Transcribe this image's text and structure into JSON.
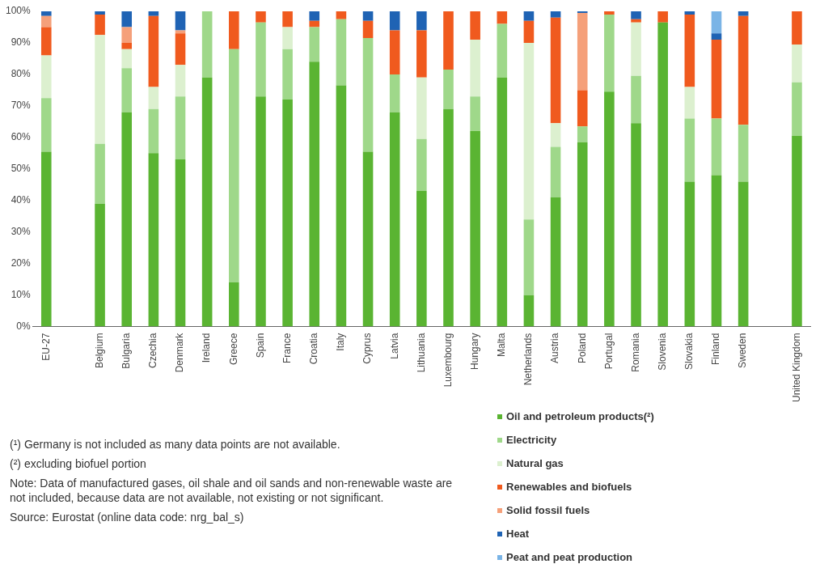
{
  "chart_data": {
    "type": "bar",
    "stacked": true,
    "categories": [
      "EU-27",
      null,
      "Belgium",
      "Bulgaria",
      "Czechia",
      "Denmark",
      "Ireland",
      "Greece",
      "Spain",
      "France",
      "Croatia",
      "Italy",
      "Cyprus",
      "Latvia",
      "Lithuania",
      "Luxembourg",
      "Hungary",
      "Malta",
      "Netherlands",
      "Austria",
      "Poland",
      "Portugal",
      "Romania",
      "Slovenia",
      "Slovakia",
      "Finland",
      "Sweden",
      null,
      "United Kingdom"
    ],
    "series": [
      {
        "name": "Oil and petroleum products(²)",
        "color": "#5ab432",
        "values": [
          55.5,
          null,
          39,
          68,
          55,
          53,
          79,
          14,
          73,
          72,
          84,
          76.5,
          55.5,
          68,
          43,
          69,
          62,
          79,
          10,
          41,
          58.5,
          74.5,
          64.5,
          96.5,
          46,
          48,
          46,
          null,
          60.5
        ]
      },
      {
        "name": "Electricity",
        "color": "#9fd88a",
        "values": [
          17,
          null,
          19,
          14,
          14,
          20,
          21,
          74,
          23.5,
          16,
          11,
          21,
          36,
          12,
          16.5,
          12.5,
          11,
          17,
          24,
          16,
          5,
          24.5,
          15,
          0,
          20,
          18,
          18,
          null,
          17
        ]
      },
      {
        "name": "Natural gas",
        "color": "#dcf0cf",
        "values": [
          13.5,
          null,
          34.5,
          6,
          7,
          10,
          0,
          0,
          0,
          7,
          0,
          0,
          0,
          0,
          19.5,
          0,
          18,
          0,
          56,
          7.5,
          0,
          0,
          17,
          0,
          10,
          0,
          0,
          null,
          12
        ]
      },
      {
        "name": "Renewables and biofuels",
        "color": "#f05a1e",
        "values": [
          9,
          null,
          6.5,
          2,
          22.5,
          10,
          0,
          12,
          3.5,
          5,
          2,
          2.5,
          5.5,
          14,
          15,
          18.5,
          9,
          4,
          7,
          33.5,
          11.5,
          1,
          1,
          3.5,
          23,
          25,
          34.5,
          null,
          10.5
        ]
      },
      {
        "name": "Solid fossil fuels",
        "color": "#f5a07a",
        "values": [
          3.5,
          null,
          0,
          5,
          0,
          1,
          0,
          0,
          0,
          0,
          0,
          0,
          0,
          0,
          0,
          0,
          0,
          0,
          0,
          0,
          24.5,
          0,
          0,
          0,
          0,
          0,
          0,
          null,
          0
        ]
      },
      {
        "name": "Heat",
        "color": "#1f63b4",
        "values": [
          1.5,
          null,
          1,
          5,
          1.5,
          6,
          0,
          0,
          0,
          0,
          3,
          0,
          3,
          6,
          6,
          0,
          0,
          0,
          3,
          2,
          0.5,
          0,
          2.5,
          0,
          1,
          2,
          1.5,
          null,
          0
        ]
      },
      {
        "name": "Peat and peat production",
        "color": "#7ab4e6",
        "values": [
          0,
          null,
          0,
          0,
          0,
          0,
          0,
          0,
          0,
          0,
          0,
          0,
          0,
          0,
          0,
          0,
          0,
          0,
          0,
          0,
          0,
          0,
          0,
          0,
          0,
          7,
          0,
          null,
          0
        ]
      }
    ],
    "ylim": [
      0,
      100
    ],
    "yticks": [
      {
        "value": 0,
        "label": "0%"
      },
      {
        "value": 10,
        "label": "10%"
      },
      {
        "value": 20,
        "label": "20%"
      },
      {
        "value": 30,
        "label": "30%"
      },
      {
        "value": 40,
        "label": "40%"
      },
      {
        "value": 50,
        "label": "50%"
      },
      {
        "value": 60,
        "label": "60%"
      },
      {
        "value": 70,
        "label": "70%"
      },
      {
        "value": 80,
        "label": "80%"
      },
      {
        "value": 90,
        "label": "90%"
      },
      {
        "value": 100,
        "label": "100%"
      }
    ],
    "grid": false,
    "legend": "bottom right",
    "annotations": [
      "(¹) Germany is not included as many data points are not available.",
      "(²) excluding biofuel portion",
      "Note: Data of manufactured gases, oil shale and oil sands and non-renewable waste are not included, because data are not available, not existing or not significant.",
      "Source: Eurostat (online data code: nrg_bal_s)"
    ]
  }
}
